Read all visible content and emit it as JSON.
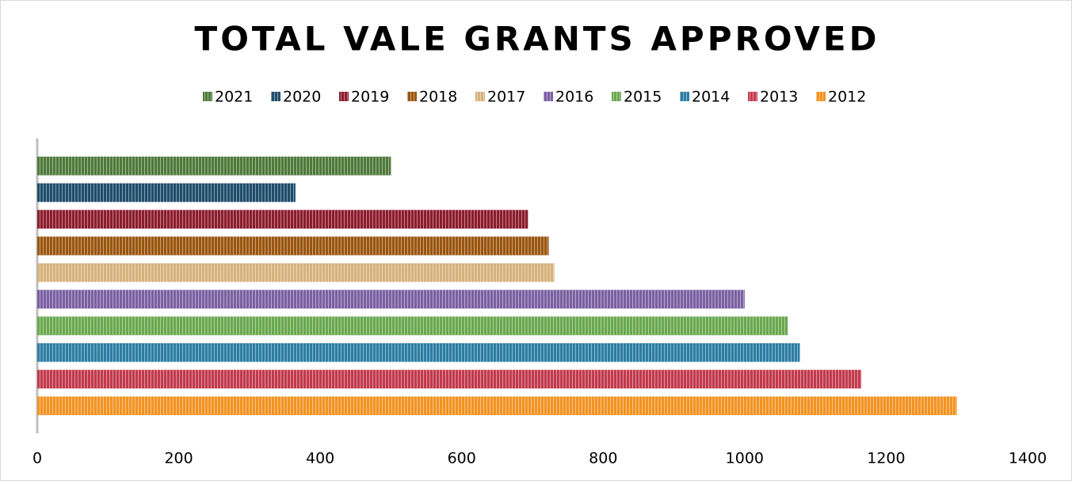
{
  "chart_data": {
    "type": "hbar",
    "title": "TOTAL VALE GRANTS APPROVED",
    "categories": [
      null
    ],
    "series": [
      {
        "name": "2021",
        "color": "#4f7a3a",
        "values": [
          500
        ]
      },
      {
        "name": "2020",
        "color": "#1f4d6b",
        "values": [
          365
        ]
      },
      {
        "name": "2019",
        "color": "#8c1d2d",
        "values": [
          694
        ]
      },
      {
        "name": "2018",
        "color": "#9a560f",
        "values": [
          723
        ]
      },
      {
        "name": "2017",
        "color": "#d6b27c",
        "values": [
          731
        ]
      },
      {
        "name": "2016",
        "color": "#7b60a2",
        "values": [
          1000
        ]
      },
      {
        "name": "2015",
        "color": "#6aa84f",
        "values": [
          1061
        ]
      },
      {
        "name": "2014",
        "color": "#2c7ea3",
        "values": [
          1078
        ]
      },
      {
        "name": "2013",
        "color": "#c23a4c",
        "values": [
          1165
        ]
      },
      {
        "name": "2012",
        "color": "#f39323",
        "values": [
          1300
        ]
      }
    ],
    "xlim": [
      0,
      1400
    ],
    "xticks": [
      0,
      200,
      400,
      600,
      800,
      1000,
      1200,
      1400
    ],
    "grid": false,
    "legend": "top"
  }
}
